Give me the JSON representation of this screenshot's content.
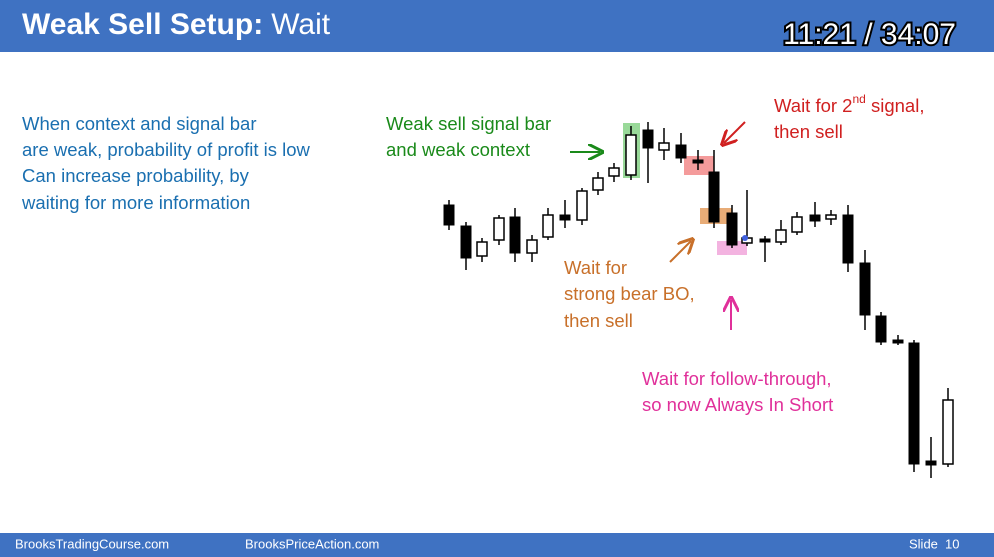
{
  "header": {
    "title_bold": "Weak Sell Setup:",
    "title_rest": "Wait",
    "timer": "11:21 / 34:07"
  },
  "body": {
    "lines": [
      "When context and signal bar",
      "are weak, probability of profit is low",
      "Can increase probability, by",
      "waiting for more information"
    ]
  },
  "annotations": {
    "signal": [
      "Weak sell signal bar",
      "and weak context"
    ],
    "second": {
      "pre": "Wait for 2",
      "sup": "nd",
      "post": " signal,",
      "line2": "then sell"
    },
    "breakout": [
      "Wait for",
      "strong bear BO,",
      "then sell"
    ],
    "follow": [
      "Wait for follow-through,",
      "so now Always In Short"
    ]
  },
  "footer": {
    "left": "BrooksTradingCourse.com",
    "middle": "BrooksPriceAction.com",
    "slide_label": "Slide",
    "slide_number": "10"
  }
}
